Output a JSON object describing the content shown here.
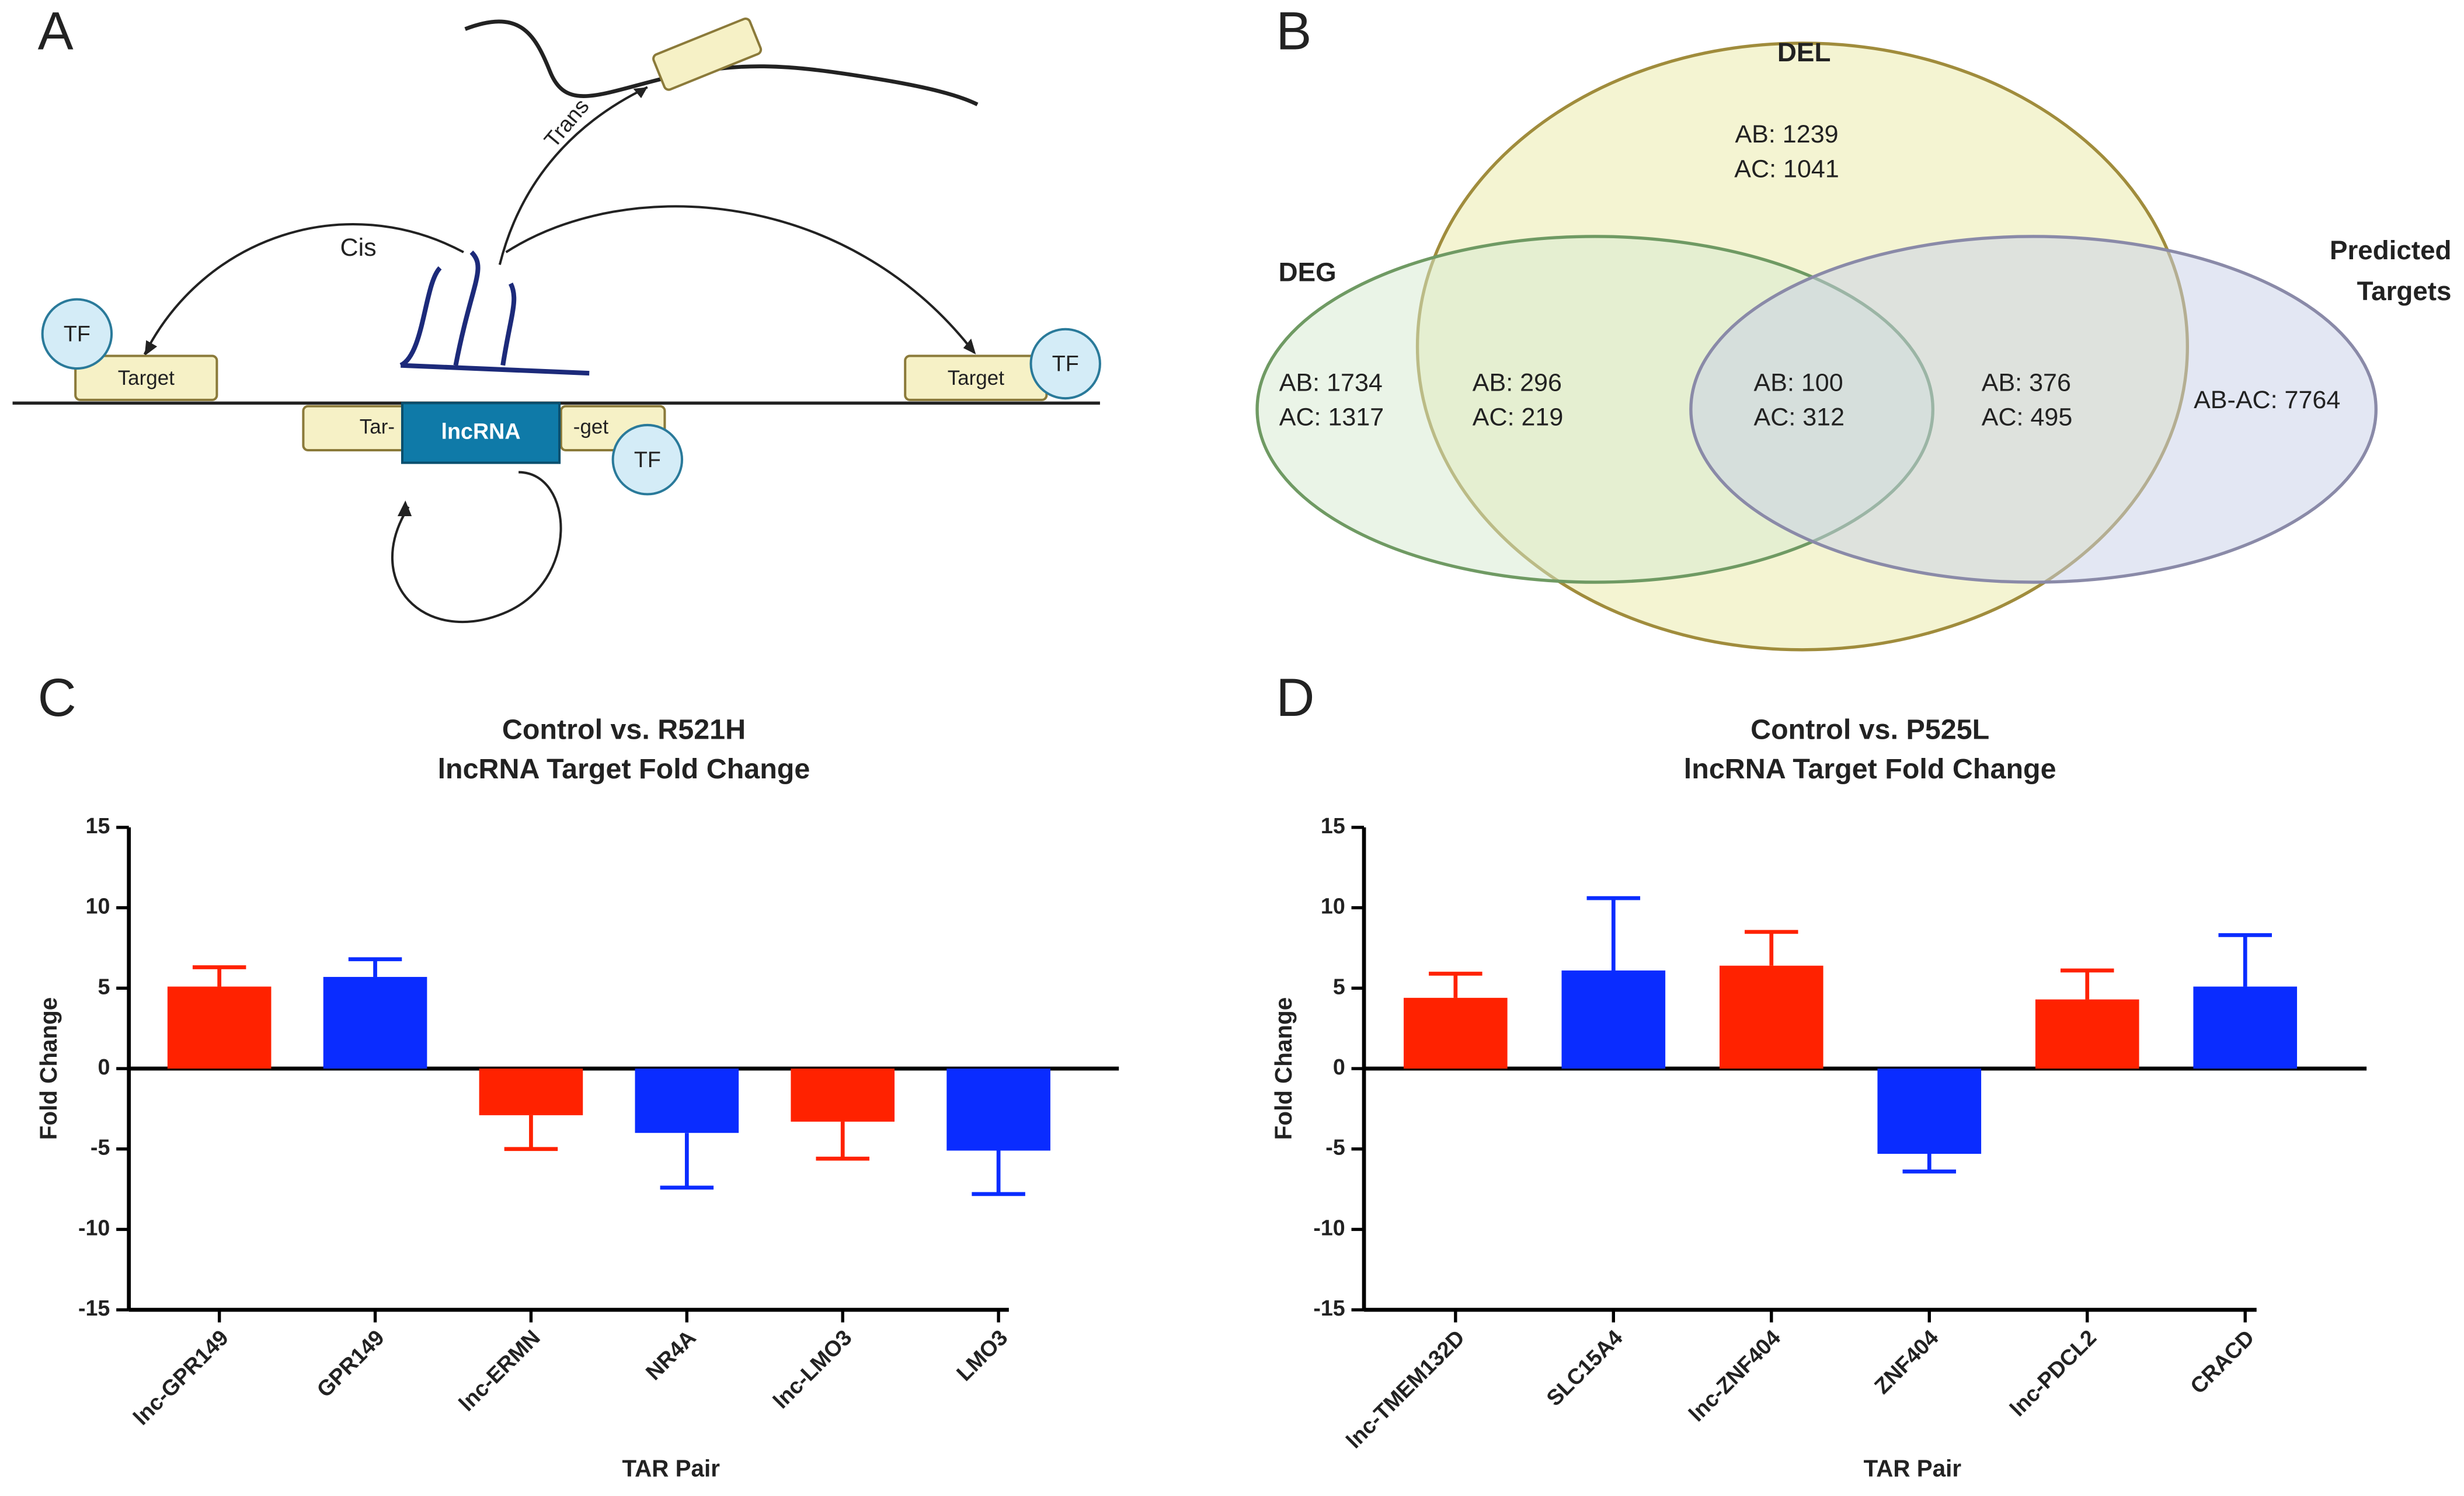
{
  "panel_labels": [
    "A",
    "B",
    "C",
    "D"
  ],
  "diagram": {
    "trans": "Trans",
    "cis": "Cis",
    "tf": [
      "TF",
      "TF",
      "TF"
    ],
    "target": [
      "Target",
      "Target"
    ],
    "split_left": "Tar-",
    "lncrna": "lncRNA",
    "split_right": "-get"
  },
  "venn": {
    "sets": [
      {
        "name": [
          "DEL"
        ]
      },
      {
        "name": [
          "DEG"
        ]
      },
      {
        "name": [
          "Predicted",
          "Targets"
        ]
      }
    ],
    "regions": [
      [
        "AB: 1239",
        "AC: 1041"
      ],
      [
        "AB: 1734",
        "AC: 1317"
      ],
      [
        "AB: 296",
        "AC: 219"
      ],
      [
        "AB: 100",
        "AC: 312"
      ],
      [
        "AB: 376",
        "AC: 495"
      ],
      [
        "AB-AC: 7764"
      ]
    ]
  },
  "chart_data": [
    {
      "type": "bar",
      "title": [
        "Control vs. R521H",
        "lncRNA Target Fold Change"
      ],
      "xlabel": "TAR Pair",
      "ylabel": "Fold Change",
      "categories": [
        "lnc-GPR149",
        "GPR149",
        "lnc-ERMN",
        "NR4A",
        "lnc-LMO3",
        "LMO3"
      ],
      "values": [
        5.1,
        5.7,
        -2.9,
        -4.0,
        -3.3,
        -5.1
      ],
      "errors": [
        1.2,
        1.1,
        2.1,
        3.4,
        2.3,
        2.7
      ],
      "colors": [
        "#ff2200",
        "#0a2cff",
        "#ff2200",
        "#0a2cff",
        "#ff2200",
        "#0a2cff"
      ],
      "ylim": [
        -15,
        15
      ],
      "yticks": [
        -15,
        -10,
        -5,
        0,
        5,
        10,
        15
      ]
    },
    {
      "type": "bar",
      "title": [
        "Control vs. P525L",
        "lncRNA Target Fold  Change"
      ],
      "xlabel": "TAR Pair",
      "ylabel": "Fold Change",
      "categories": [
        "lnc-TMEM132D",
        "SLC15A4",
        "lnc-ZNF404",
        "ZNF404",
        "lnc-PDCL2",
        "CRACD"
      ],
      "values": [
        4.4,
        6.1,
        6.4,
        -5.3,
        4.3,
        5.1
      ],
      "errors": [
        1.5,
        4.5,
        2.1,
        1.1,
        1.8,
        3.2
      ],
      "colors": [
        "#ff2200",
        "#0a2cff",
        "#ff2200",
        "#0a2cff",
        "#ff2200",
        "#0a2cff"
      ],
      "ylim": [
        -15,
        15
      ],
      "yticks": [
        -15,
        -10,
        -5,
        0,
        5,
        10,
        15
      ]
    }
  ]
}
